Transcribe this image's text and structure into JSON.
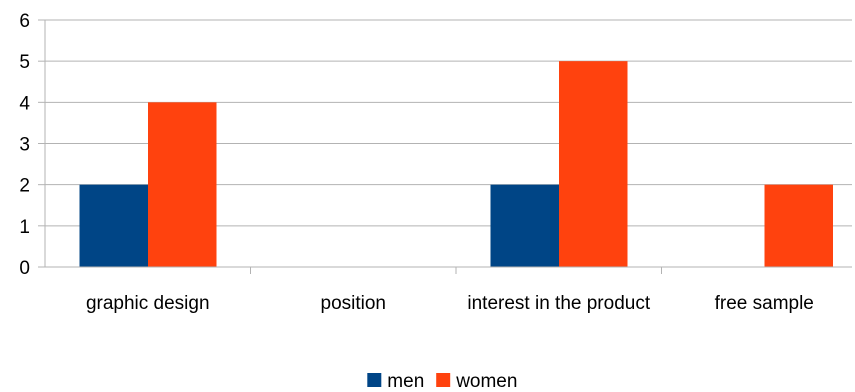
{
  "chart_data": {
    "type": "bar",
    "categories": [
      "graphic design",
      "position",
      "interest in the product",
      "free sample"
    ],
    "series": [
      {
        "name": "men",
        "values": [
          2,
          0,
          2,
          0
        ],
        "color": "#004586"
      },
      {
        "name": "women",
        "values": [
          4,
          0,
          5,
          2
        ],
        "color": "#ff420e"
      }
    ],
    "ylim": [
      0,
      6
    ],
    "yticks": [
      0,
      1,
      2,
      3,
      4,
      5,
      6
    ],
    "grid": true,
    "gridColor": "#b3b3b3",
    "legend": "bottom"
  }
}
